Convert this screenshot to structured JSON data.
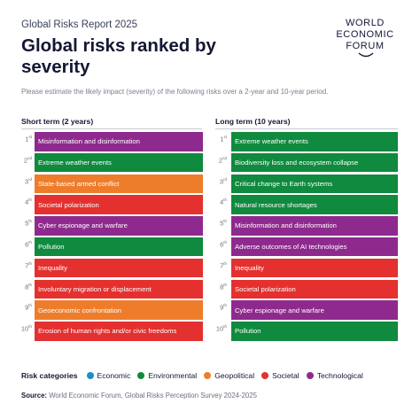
{
  "header": {
    "kicker": "Global Risks Report 2025",
    "title": "Global risks ranked by severity",
    "logo_lines": [
      "WORLD",
      "ECONOMIC",
      "FORUM"
    ]
  },
  "intro": "Please estimate the likely impact (severity) of the following risks over a 2-year and 10-year period.",
  "colors": {
    "Economic": "#1a8fc9",
    "Environmental": "#0f8a3e",
    "Geopolitical": "#ee7d2b",
    "Societal": "#e4302f",
    "Technological": "#8e2a8e"
  },
  "short_term": {
    "heading": "Short term (2 years)",
    "items": [
      {
        "rank": "1",
        "suffix": "st",
        "label": "Misinformation and disinformation",
        "category": "Technological"
      },
      {
        "rank": "2",
        "suffix": "nd",
        "label": "Extreme weather events",
        "category": "Environmental"
      },
      {
        "rank": "3",
        "suffix": "rd",
        "label": "State-based armed conflict",
        "category": "Geopolitical"
      },
      {
        "rank": "4",
        "suffix": "th",
        "label": "Societal polarization",
        "category": "Societal"
      },
      {
        "rank": "5",
        "suffix": "th",
        "label": "Cyber espionage and warfare",
        "category": "Technological"
      },
      {
        "rank": "6",
        "suffix": "th",
        "label": "Pollution",
        "category": "Environmental"
      },
      {
        "rank": "7",
        "suffix": "th",
        "label": "Inequality",
        "category": "Societal"
      },
      {
        "rank": "8",
        "suffix": "th",
        "label": "Involuntary migration or displacement",
        "category": "Societal"
      },
      {
        "rank": "9",
        "suffix": "th",
        "label": "Geoeconomic confrontation",
        "category": "Geopolitical"
      },
      {
        "rank": "10",
        "suffix": "th",
        "label": "Erosion of human rights and/or civic freedoms",
        "category": "Societal"
      }
    ]
  },
  "long_term": {
    "heading": "Long term (10 years)",
    "items": [
      {
        "rank": "1",
        "suffix": "st",
        "label": "Extreme weather events",
        "category": "Environmental"
      },
      {
        "rank": "2",
        "suffix": "nd",
        "label": "Biodiversity loss and ecosystem collapse",
        "category": "Environmental"
      },
      {
        "rank": "3",
        "suffix": "rd",
        "label": "Critical change to Earth systems",
        "category": "Environmental"
      },
      {
        "rank": "4",
        "suffix": "th",
        "label": "Natural resource shortages",
        "category": "Environmental"
      },
      {
        "rank": "5",
        "suffix": "th",
        "label": "Misinformation and disinformation",
        "category": "Technological"
      },
      {
        "rank": "6",
        "suffix": "th",
        "label": "Adverse outcomes of AI technologies",
        "category": "Technological"
      },
      {
        "rank": "7",
        "suffix": "th",
        "label": "Inequality",
        "category": "Societal"
      },
      {
        "rank": "8",
        "suffix": "th",
        "label": "Societal polarization",
        "category": "Societal"
      },
      {
        "rank": "9",
        "suffix": "th",
        "label": "Cyber espionage and warfare",
        "category": "Technological"
      },
      {
        "rank": "10",
        "suffix": "th",
        "label": "Pollution",
        "category": "Environmental"
      }
    ]
  },
  "legend": {
    "title": "Risk categories",
    "items": [
      "Economic",
      "Environmental",
      "Geopolitical",
      "Societal",
      "Technological"
    ]
  },
  "source": {
    "label": "Source:",
    "text": "World Economic Forum, Global Risks Perception Survey 2024-2025"
  }
}
